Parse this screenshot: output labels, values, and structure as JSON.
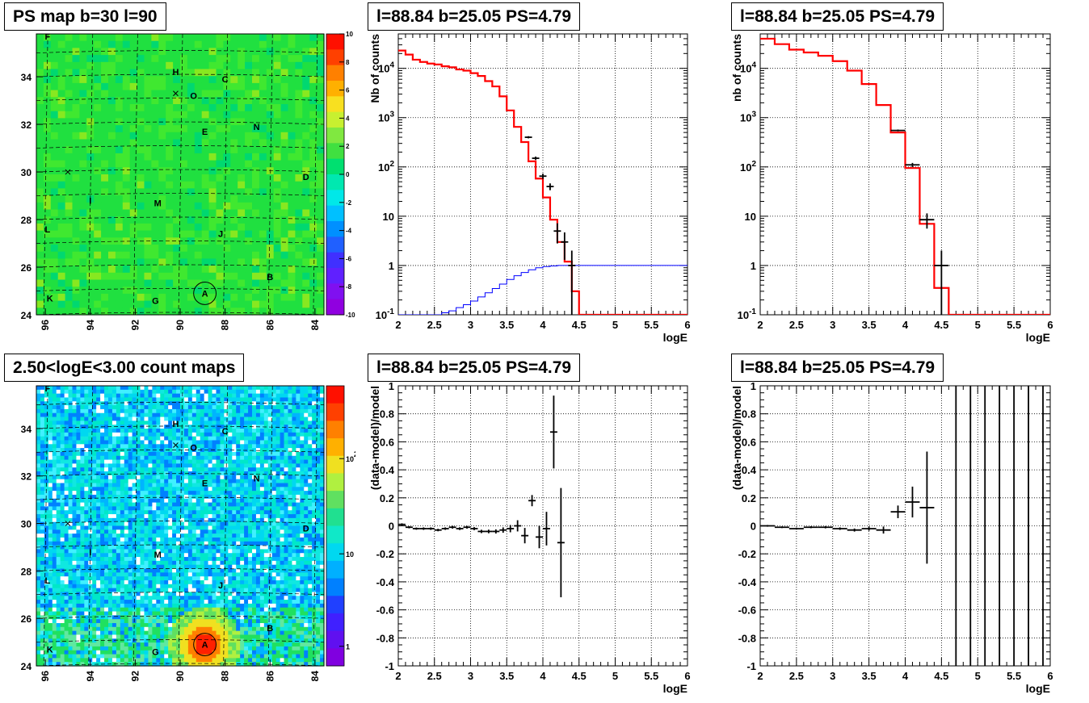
{
  "colors": {
    "data_marker": "#000000",
    "model_line": "#ff0000",
    "exposure_line": "#0000ff",
    "grid": "#000000",
    "map_background": "#00e040"
  },
  "pads": [
    {
      "title": "PS map b=30 l=90",
      "chart_data": {
        "type": "heatmap",
        "title": "PS map b=30 l=90",
        "xlabel": "",
        "ylabel": "",
        "x_ticks": [
          "96",
          "94",
          "92",
          "90",
          "88",
          "86",
          "84"
        ],
        "y_ticks": [
          "24",
          "26",
          "28",
          "30",
          "32",
          "34"
        ],
        "xlim": [
          96.4,
          83.6
        ],
        "ylim": [
          24,
          35.8
        ],
        "colorbar_scale": "linear",
        "colorbar_range": [
          -10,
          10
        ],
        "colorbar_ticks": [
          "10",
          "8",
          "6",
          "4",
          "2",
          "0",
          "-2",
          "-4",
          "-6",
          "-8",
          "-10"
        ],
        "dominant_value": 0,
        "source_labels": [
          {
            "label": "F",
            "l": 95.9,
            "b": 35.7
          },
          {
            "label": "H",
            "l": 90.2,
            "b": 34.2
          },
          {
            "label": "C",
            "l": 88.0,
            "b": 33.9
          },
          {
            "label": "O",
            "l": 89.4,
            "b": 33.2
          },
          {
            "label": "E",
            "l": 88.9,
            "b": 31.7
          },
          {
            "label": "N",
            "l": 86.6,
            "b": 31.9
          },
          {
            "label": "D",
            "l": 84.4,
            "b": 29.8
          },
          {
            "label": "I",
            "l": 94.0,
            "b": 28.8
          },
          {
            "label": "M",
            "l": 91.0,
            "b": 28.7
          },
          {
            "label": "L",
            "l": 95.9,
            "b": 27.6
          },
          {
            "label": "J",
            "l": 88.2,
            "b": 27.4
          },
          {
            "label": "B",
            "l": 86.0,
            "b": 25.6
          },
          {
            "label": "K",
            "l": 95.8,
            "b": 24.7
          },
          {
            "label": "G",
            "l": 91.1,
            "b": 24.6
          },
          {
            "label": "A",
            "l": 88.9,
            "b": 24.9
          }
        ],
        "markers": [
          {
            "label": "",
            "l": 90.2,
            "b": 33.3
          },
          {
            "label": "",
            "l": 95.0,
            "b": 30.0
          }
        ],
        "circle": {
          "l": 88.9,
          "b": 24.9,
          "radius_deg": 0.5
        }
      }
    },
    {
      "title": "l=88.84 b=25.05 PS=4.79",
      "chart_data": {
        "type": "line",
        "title": "l=88.84 b=25.05 PS=4.79",
        "xlabel": "logE",
        "ylabel": "Nb of counts",
        "xlim": [
          2,
          6
        ],
        "ylim": [
          0.1,
          50000
        ],
        "yscale": "log",
        "x_ticks": [
          "2",
          "2.5",
          "3",
          "3.5",
          "4",
          "4.5",
          "5",
          "5.5",
          "6"
        ],
        "y_ticks": [
          "10^-1",
          "1",
          "10",
          "10^2",
          "10^3",
          "10^4"
        ],
        "grid": true,
        "bin_width": 0.1,
        "series": [
          {
            "style": "step",
            "x": [
              2.0,
              2.1,
              2.2,
              2.3,
              2.4,
              2.5,
              2.6,
              2.7,
              2.8,
              2.9,
              3.0,
              3.1,
              3.2,
              3.3,
              3.4,
              3.5,
              3.6,
              3.7,
              3.8,
              3.9,
              4.0,
              4.1,
              4.2,
              4.3,
              4.4,
              4.5,
              4.6,
              4.7,
              4.8,
              4.9,
              5.0,
              5.1,
              5.2,
              5.3,
              5.4,
              5.5,
              5.6,
              5.7,
              5.8,
              5.9
            ],
            "values": [
              23000,
              19000,
              15000,
              13500,
              12500,
              12000,
              11000,
              10500,
              9500,
              9000,
              8000,
              7000,
              5500,
              4300,
              2700,
              1400,
              650,
              320,
              130,
              58,
              24,
              8.5,
              3,
              1.2,
              0.3,
              0.1,
              0.1,
              0.1,
              0.1,
              0.1,
              0.1,
              0.1,
              0.1,
              0.1,
              0.1,
              0.1,
              0.1,
              0.1,
              0.1,
              0.1
            ]
          },
          {
            "style": "step",
            "x": [
              2.0,
              2.1,
              2.2,
              2.3,
              2.4,
              2.5,
              2.6,
              2.7,
              2.8,
              2.9,
              3.0,
              3.1,
              3.2,
              3.3,
              3.4,
              3.5,
              3.6,
              3.7,
              3.8,
              3.9,
              4.0,
              4.1,
              4.2,
              4.3,
              4.4,
              4.5,
              4.6,
              4.7,
              4.8,
              4.9,
              5.0,
              5.1,
              5.2,
              5.3,
              5.4,
              5.5,
              5.6,
              5.7,
              5.8,
              5.9
            ],
            "values": [
              0.1,
              0.1,
              0.1,
              0.1,
              0.1,
              0.1,
              0.11,
              0.12,
              0.14,
              0.16,
              0.19,
              0.23,
              0.28,
              0.34,
              0.42,
              0.52,
              0.62,
              0.72,
              0.82,
              0.9,
              0.95,
              0.98,
              1,
              1,
              1,
              1,
              1,
              1,
              1,
              1,
              1,
              1,
              1,
              1,
              1,
              1,
              1,
              1,
              1,
              1
            ]
          },
          {
            "style": "points",
            "x": [
              3.8,
              3.9,
              4.0,
              4.1,
              4.2,
              4.3,
              4.4
            ],
            "values": [
              400,
              150,
              65,
              40,
              5,
              3,
              1
            ],
            "errors": [
              20,
              12,
              8,
              6.3,
              2.2,
              1.7,
              1
            ]
          }
        ]
      }
    },
    {
      "title": "l=88.84 b=25.05 PS=4.79",
      "chart_data": {
        "type": "line",
        "title": "l=88.84 b=25.05 PS=4.79",
        "xlabel": "logE",
        "ylabel": "nb of counts",
        "xlim": [
          2,
          6
        ],
        "ylim": [
          0.1,
          50000
        ],
        "yscale": "log",
        "x_ticks": [
          "2",
          "2.5",
          "3",
          "3.5",
          "4",
          "4.5",
          "5",
          "5.5",
          "6"
        ],
        "y_ticks": [
          "10^-1",
          "1",
          "10",
          "10^2",
          "10^3",
          "10^4"
        ],
        "grid": true,
        "bin_width": 0.2,
        "series": [
          {
            "style": "step",
            "x": [
              2.0,
              2.2,
              2.4,
              2.6,
              2.8,
              3.0,
              3.2,
              3.4,
              3.6,
              3.8,
              4.0,
              4.2,
              4.4,
              4.6,
              4.8,
              5.0,
              5.2,
              5.4,
              5.6,
              5.8
            ],
            "values": [
              40000,
              31000,
              24000,
              21000,
              18000,
              14000,
              9000,
              4800,
              1800,
              500,
              95,
              7,
              0.35,
              0.1,
              0.1,
              0.1,
              0.1,
              0.1,
              0.1,
              0.1
            ]
          },
          {
            "style": "points",
            "x": [
              3.9,
              4.1,
              4.3,
              4.5
            ],
            "values": [
              550,
              110,
              8.5,
              1
            ],
            "errors": [
              23,
              10.5,
              2.9,
              1
            ]
          }
        ]
      }
    },
    {
      "title": "2.50<logE<3.00 count maps",
      "chart_data": {
        "type": "heatmap",
        "title": "2.50<logE<3.00 count maps",
        "xlabel": "",
        "ylabel": "",
        "x_ticks": [
          "96",
          "94",
          "92",
          "90",
          "88",
          "86",
          "84"
        ],
        "y_ticks": [
          "24",
          "26",
          "28",
          "30",
          "32",
          "34"
        ],
        "xlim": [
          96.4,
          83.6
        ],
        "ylim": [
          24,
          35.8
        ],
        "colorbar_scale": "log",
        "colorbar_ticks": [
          "10^2",
          "10",
          "1"
        ],
        "hotspot": {
          "l": 88.9,
          "b": 24.9
        },
        "source_labels": [
          {
            "label": "F",
            "l": 95.9,
            "b": 35.7
          },
          {
            "label": "H",
            "l": 90.2,
            "b": 34.2
          },
          {
            "label": "C",
            "l": 88.0,
            "b": 33.9
          },
          {
            "label": "O",
            "l": 89.4,
            "b": 33.2
          },
          {
            "label": "E",
            "l": 88.9,
            "b": 31.7
          },
          {
            "label": "N",
            "l": 86.6,
            "b": 31.9
          },
          {
            "label": "D",
            "l": 84.4,
            "b": 29.8
          },
          {
            "label": "I",
            "l": 94.0,
            "b": 28.8
          },
          {
            "label": "M",
            "l": 91.0,
            "b": 28.7
          },
          {
            "label": "L",
            "l": 95.9,
            "b": 27.6
          },
          {
            "label": "J",
            "l": 88.2,
            "b": 27.4
          },
          {
            "label": "B",
            "l": 86.0,
            "b": 25.6
          },
          {
            "label": "K",
            "l": 95.8,
            "b": 24.7
          },
          {
            "label": "G",
            "l": 91.1,
            "b": 24.6
          },
          {
            "label": "A",
            "l": 88.9,
            "b": 24.9
          }
        ],
        "markers": [
          {
            "label": "",
            "l": 90.2,
            "b": 33.3
          },
          {
            "label": "",
            "l": 95.0,
            "b": 30.0
          }
        ],
        "circle": {
          "l": 88.9,
          "b": 24.9,
          "radius_deg": 0.5
        }
      }
    },
    {
      "title": "l=88.84 b=25.05 PS=4.79",
      "chart_data": {
        "type": "scatter",
        "title": "l=88.84 b=25.05 PS=4.79",
        "xlabel": "logE",
        "ylabel": "(data-model)/model",
        "xlim": [
          2,
          6
        ],
        "ylim": [
          -1,
          1
        ],
        "x_ticks": [
          "2",
          "2.5",
          "3",
          "3.5",
          "4",
          "4.5",
          "5",
          "5.5",
          "6"
        ],
        "y_ticks": [
          "-1",
          "-0.8",
          "-0.6",
          "-0.4",
          "-0.2",
          "0",
          "0.2",
          "0.4",
          "0.6",
          "0.8",
          "1"
        ],
        "grid": true,
        "bin_width": 0.1,
        "series": [
          {
            "style": "points",
            "x": [
              2.05,
              2.15,
              2.25,
              2.35,
              2.45,
              2.55,
              2.65,
              2.75,
              2.85,
              2.95,
              3.05,
              3.15,
              3.25,
              3.35,
              3.45,
              3.55,
              3.65,
              3.75,
              3.85,
              3.95,
              4.05,
              4.15,
              4.25
            ],
            "values": [
              0.01,
              -0.01,
              -0.02,
              -0.02,
              -0.02,
              -0.03,
              -0.02,
              -0.01,
              -0.02,
              -0.01,
              -0.02,
              -0.04,
              -0.04,
              -0.04,
              -0.03,
              -0.02,
              0.0,
              -0.07,
              0.18,
              -0.08,
              -0.02,
              0.67,
              -0.12
            ],
            "errors": [
              0.008,
              0.008,
              0.008,
              0.009,
              0.009,
              0.009,
              0.009,
              0.01,
              0.01,
              0.01,
              0.011,
              0.012,
              0.013,
              0.015,
              0.019,
              0.026,
              0.04,
              0.055,
              0.04,
              0.08,
              0.12,
              0.26,
              0.39
            ]
          }
        ]
      }
    },
    {
      "title": "l=88.84 b=25.05 PS=4.79",
      "chart_data": {
        "type": "scatter",
        "title": "l=88.84 b=25.05 PS=4.79",
        "xlabel": "logE",
        "ylabel": "(data-model)/model",
        "xlim": [
          2,
          6
        ],
        "ylim": [
          -1,
          1
        ],
        "x_ticks": [
          "2",
          "2.5",
          "3",
          "3.5",
          "4",
          "4.5",
          "5",
          "5.5",
          "6"
        ],
        "y_ticks": [
          "-1",
          "-0.8",
          "-0.6",
          "-0.4",
          "-0.2",
          "0",
          "0.2",
          "0.4",
          "0.6",
          "0.8",
          "1"
        ],
        "grid": true,
        "bin_width": 0.2,
        "series": [
          {
            "style": "points",
            "x": [
              2.1,
              2.3,
              2.5,
              2.7,
              2.9,
              3.1,
              3.3,
              3.5,
              3.7,
              3.9,
              4.1,
              4.3
            ],
            "values": [
              0.0,
              -0.01,
              -0.02,
              -0.01,
              -0.01,
              -0.02,
              -0.03,
              -0.02,
              -0.03,
              0.1,
              0.17,
              0.13
            ],
            "errors": [
              0.006,
              0.006,
              0.007,
              0.007,
              0.008,
              0.009,
              0.011,
              0.015,
              0.025,
              0.045,
              0.11,
              0.4
            ]
          },
          {
            "style": "error-bars",
            "x": [
              4.7,
              4.9,
              5.1,
              5.3,
              5.5,
              5.7,
              5.9
            ],
            "values": [
              0,
              0,
              0,
              0,
              0,
              0,
              0
            ],
            "errors": [
              1,
              1,
              1,
              1,
              1,
              1,
              1
            ]
          }
        ]
      }
    }
  ]
}
